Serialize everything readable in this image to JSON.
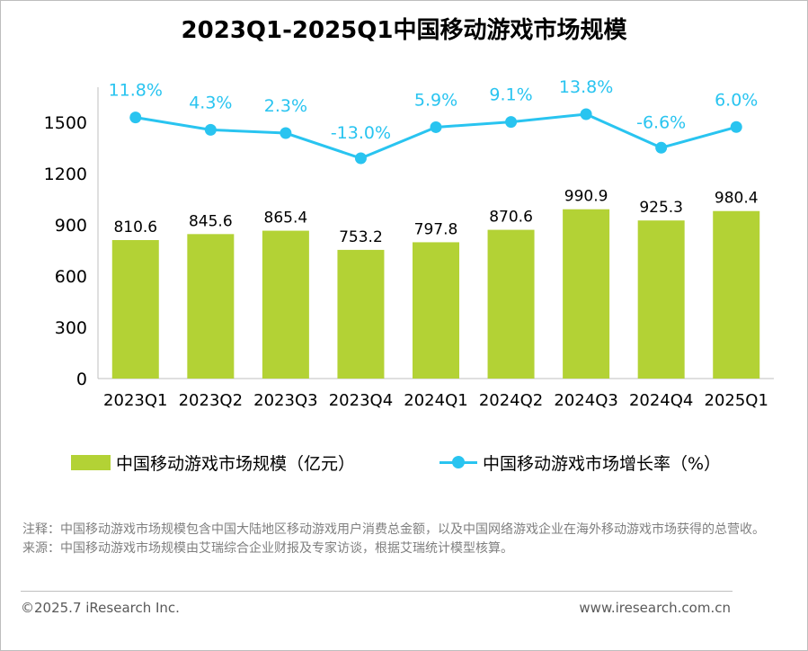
{
  "title": "2023Q1-2025Q1中国移动游戏市场规模",
  "colors": {
    "bar": "#b3d235",
    "line": "#29c4f0",
    "axis": "#bfbfbf"
  },
  "legend": {
    "bar_label": "中国移动游戏市场规模（亿元）",
    "line_label": "中国移动游戏市场增长率（%）"
  },
  "chart_data": {
    "type": "bar",
    "categories": [
      "2023Q1",
      "2023Q2",
      "2023Q3",
      "2023Q4",
      "2024Q1",
      "2024Q2",
      "2024Q3",
      "2024Q4",
      "2025Q1"
    ],
    "series": [
      {
        "name": "中国移动游戏市场规模（亿元）",
        "type": "bar",
        "axis": "left",
        "values": [
          810.6,
          845.6,
          865.4,
          753.2,
          797.8,
          870.6,
          990.9,
          925.3,
          980.4
        ],
        "labels": [
          "810.6",
          "845.6",
          "865.4",
          "753.2",
          "797.8",
          "870.6",
          "990.9",
          "925.3",
          "980.4"
        ]
      },
      {
        "name": "中国移动游戏市场增长率（%）",
        "type": "line",
        "axis": "secondary",
        "values": [
          11.8,
          4.3,
          2.3,
          -13.0,
          5.9,
          9.1,
          13.8,
          -6.6,
          6.0
        ],
        "labels": [
          "11.8%",
          "4.3%",
          "2.3%",
          "-13.0%",
          "5.9%",
          "9.1%",
          "13.8%",
          "-6.6%",
          "6.0%"
        ]
      }
    ],
    "yticks": [
      "0",
      "300",
      "600",
      "900",
      "1200",
      "1500"
    ],
    "ylim": [
      0,
      1500
    ],
    "grid": false,
    "legend_position": "bottom"
  },
  "notes": {
    "note": "注释：中国移动游戏市场规模包含中国大陆地区移动游戏用户消费总金额，以及中国网络游戏企业在海外移动游戏市场获得的总营收。",
    "source": "来源：中国移动游戏市场规模由艾瑞综合企业财报及专家访谈，根据艾瑞统计模型核算。"
  },
  "footer": {
    "copyright": "©2025.7 iResearch Inc.",
    "website": "www.iresearch.com.cn"
  }
}
